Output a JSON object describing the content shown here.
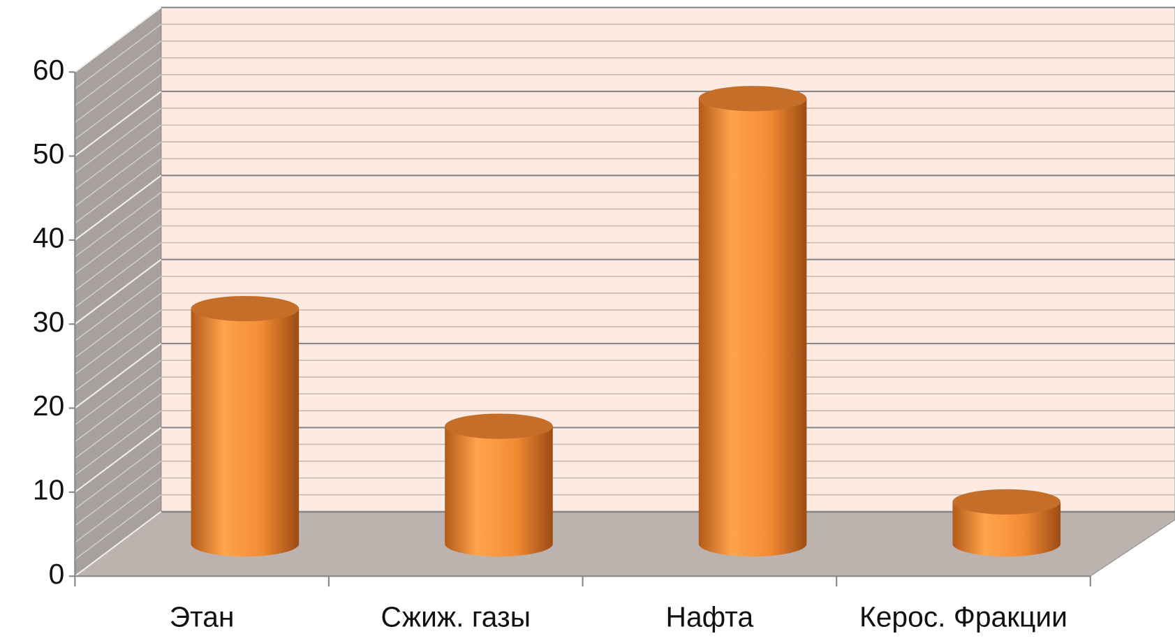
{
  "chart_data": {
    "type": "bar3d",
    "categories": [
      "Этан",
      "Сжиж. газы",
      "Нафта",
      "Керос. Фракции"
    ],
    "values": [
      28,
      14,
      53,
      5
    ],
    "color": "#f7943e",
    "ylim": [
      0,
      60
    ],
    "yticks": [
      0,
      10,
      20,
      30,
      40,
      50,
      60
    ],
    "grid": true
  }
}
